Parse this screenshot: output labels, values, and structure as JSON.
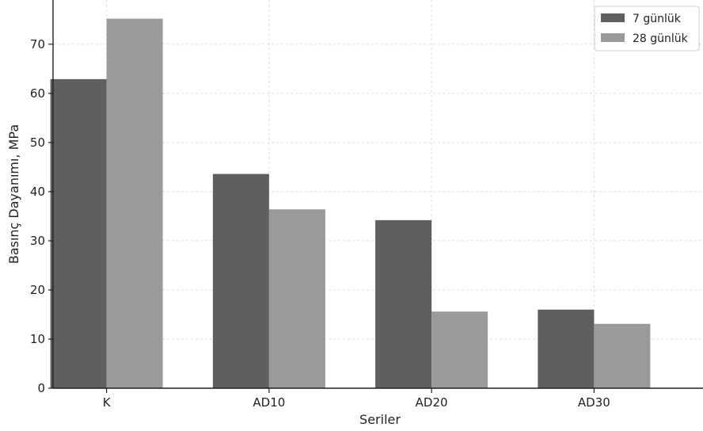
{
  "chart_data": {
    "type": "bar",
    "title": "",
    "xlabel": "Seriler",
    "ylabel": "Basınç Dayanımı, MPa",
    "categories": [
      "K",
      "AD10",
      "AD20",
      "AD30"
    ],
    "series": [
      {
        "name": "7 günlük",
        "values": [
          62.9,
          43.6,
          34.2,
          16.0
        ],
        "color": "#5f5f5f"
      },
      {
        "name": "28 günlük",
        "values": [
          75.2,
          36.4,
          15.6,
          13.1
        ],
        "color": "#9a9a9a"
      }
    ],
    "ylim": [
      0,
      79
    ],
    "yticks": [
      0,
      10,
      20,
      30,
      40,
      50,
      60,
      70
    ],
    "grid": true,
    "legend_position": "top-right",
    "grid_color": "#dcdcdc",
    "axis_color": "#222222"
  }
}
